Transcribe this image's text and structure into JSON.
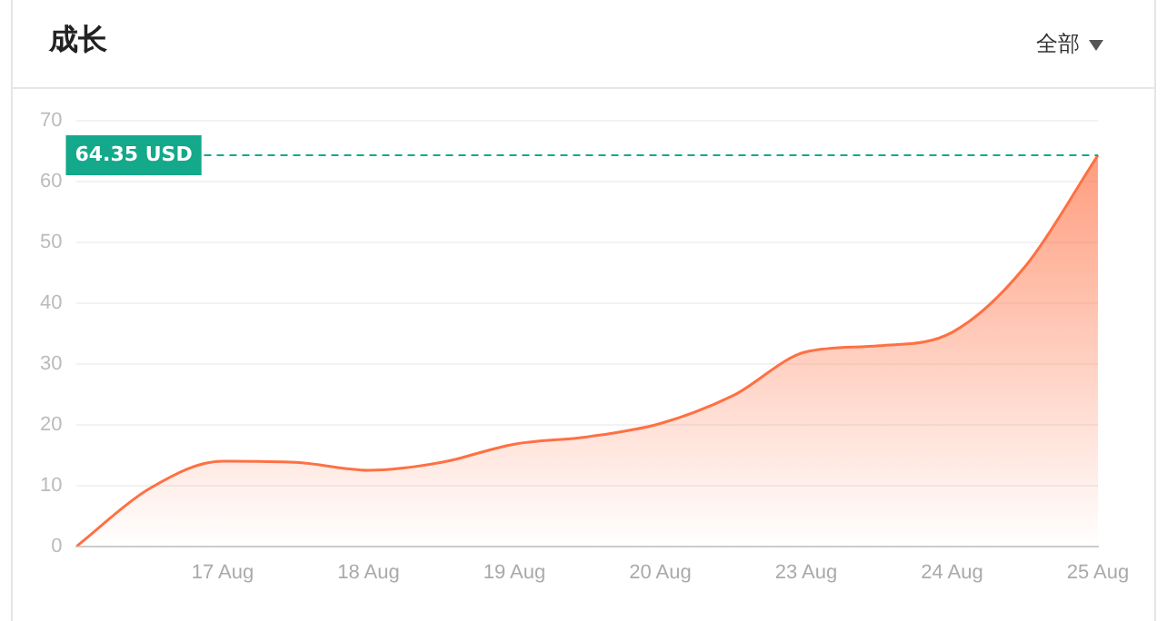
{
  "chart_data": {
    "type": "area",
    "title": "成长",
    "annotations": [
      "全部"
    ],
    "categories": [
      null,
      null,
      "17 Aug",
      null,
      "18 Aug",
      null,
      "19 Aug",
      null,
      "20 Aug",
      null,
      "23 Aug",
      null,
      "24 Aug",
      null,
      "25 Aug"
    ],
    "series": [
      {
        "color": "#ff7043",
        "values": [
          0,
          9.5,
          14,
          13.8,
          12.5,
          13.8,
          16.8,
          18,
          20.2,
          24.8,
          32,
          33,
          35.2,
          46,
          64.35
        ]
      }
    ],
    "ylim": [
      0,
      70
    ],
    "yticks": [
      0,
      10,
      20,
      30,
      40,
      50,
      60,
      70
    ],
    "grid": "y",
    "legend": false,
    "marker": "none",
    "line_style": "solid",
    "ref_lines": [
      {
        "axis": "y",
        "value": 64.35,
        "label": "64.35 USD",
        "color": "#13a98a",
        "line_style": "dashed"
      }
    ]
  }
}
